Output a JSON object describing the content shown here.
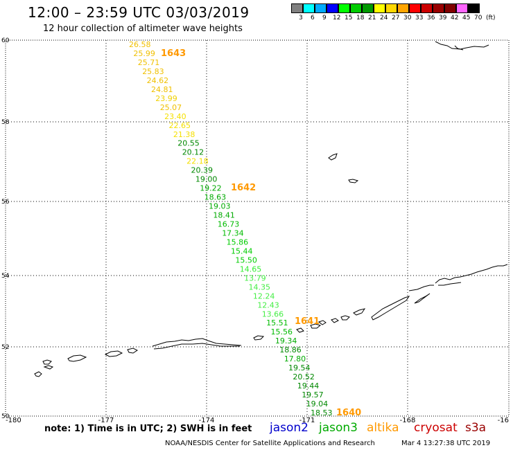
{
  "header": {
    "title": "12:00 – 23:59 UTC 03/03/2019",
    "subtitle": "12 hour collection of altimeter wave heights"
  },
  "scale": {
    "unit": "(ft)",
    "labels": [
      "3",
      "6",
      "9",
      "12",
      "15",
      "18",
      "21",
      "24",
      "27",
      "30",
      "33",
      "36",
      "39",
      "42",
      "45",
      "70"
    ],
    "colors": [
      "#808080",
      "#00ffff",
      "#00aaff",
      "#0000ff",
      "#00ff00",
      "#00cc00",
      "#009900",
      "#ffff00",
      "#ffd700",
      "#ffa500",
      "#ff0000",
      "#cc0000",
      "#990000",
      "#800000",
      "#ff66ff",
      "#000000"
    ]
  },
  "axes": {
    "lat_labels": [
      "60",
      "58",
      "56",
      "54",
      "52",
      "50"
    ],
    "lon_labels": [
      "-180",
      "-177",
      "-174",
      "-171",
      "-168",
      "-16"
    ]
  },
  "track": {
    "points": [
      {
        "value": "26.58",
        "color": "#f0c000"
      },
      {
        "value": "25.99",
        "color": "#f0c000"
      },
      {
        "value": "25.71",
        "color": "#f0c000"
      },
      {
        "value": "25.83",
        "color": "#f0c000"
      },
      {
        "value": "24.62",
        "color": "#f0c000"
      },
      {
        "value": "24.81",
        "color": "#f0c000"
      },
      {
        "value": "23.99",
        "color": "#f0d000"
      },
      {
        "value": "25.07",
        "color": "#f0c000"
      },
      {
        "value": "23.40",
        "color": "#f5e000"
      },
      {
        "value": "22.65",
        "color": "#f5e000"
      },
      {
        "value": "21.38",
        "color": "#f5e000"
      },
      {
        "value": "20.55",
        "color": "#008800"
      },
      {
        "value": "20.12",
        "color": "#008800"
      },
      {
        "value": "22.18",
        "color": "#f5e000"
      },
      {
        "value": "20.39",
        "color": "#008800"
      },
      {
        "value": "19.00",
        "color": "#008800"
      },
      {
        "value": "19.22",
        "color": "#00aa00"
      },
      {
        "value": "18.63",
        "color": "#00aa00"
      },
      {
        "value": "19.03",
        "color": "#00aa00"
      },
      {
        "value": "18.41",
        "color": "#00aa00"
      },
      {
        "value": "16.73",
        "color": "#00bb00"
      },
      {
        "value": "17.34",
        "color": "#00bb00"
      },
      {
        "value": "15.86",
        "color": "#00cc00"
      },
      {
        "value": "15.44",
        "color": "#00cc00"
      },
      {
        "value": "15.50",
        "color": "#00cc00"
      },
      {
        "value": "14.65",
        "color": "#33ee33"
      },
      {
        "value": "13.79",
        "color": "#44ee44"
      },
      {
        "value": "14.35",
        "color": "#44ee44"
      },
      {
        "value": "12.24",
        "color": "#44ee44"
      },
      {
        "value": "12.43",
        "color": "#44ee44"
      },
      {
        "value": "13.66",
        "color": "#44ee44"
      },
      {
        "value": "15.51",
        "color": "#00bb00"
      },
      {
        "value": "15.56",
        "color": "#00bb00"
      },
      {
        "value": "19.34",
        "color": "#00aa00"
      },
      {
        "value": "18.86",
        "color": "#008800"
      },
      {
        "value": "17.80",
        "color": "#00aa00"
      },
      {
        "value": "19.54",
        "color": "#008800"
      },
      {
        "value": "20.52",
        "color": "#008800"
      },
      {
        "value": "19.44",
        "color": "#008800"
      },
      {
        "value": "19.57",
        "color": "#008800"
      },
      {
        "value": "19.04",
        "color": "#008800"
      },
      {
        "value": "18.53",
        "color": "#008800"
      }
    ],
    "pass_labels": [
      {
        "label": "1643",
        "color": "#ff9900"
      },
      {
        "label": "1642",
        "color": "#ff9900"
      },
      {
        "label": "1641",
        "color": "#ff9900"
      },
      {
        "label": "1640",
        "color": "#ff9900"
      }
    ]
  },
  "legend": {
    "note": "note: 1) Time is in UTC; 2) SWH is in feet",
    "satellites": [
      {
        "name": "jason2",
        "color": "#0000cc"
      },
      {
        "name": "jason3",
        "color": "#00aa00"
      },
      {
        "name": "altika",
        "color": "#ff9900"
      },
      {
        "name": "cryosat",
        "color": "#cc0000"
      },
      {
        "name": "s3a",
        "color": "#990000"
      }
    ]
  },
  "footer": {
    "credit": "NOAA/NESDIS Center for Satellite Applications and Research",
    "timestamp": "Mar  4 13:27:38 UTC 2019"
  }
}
